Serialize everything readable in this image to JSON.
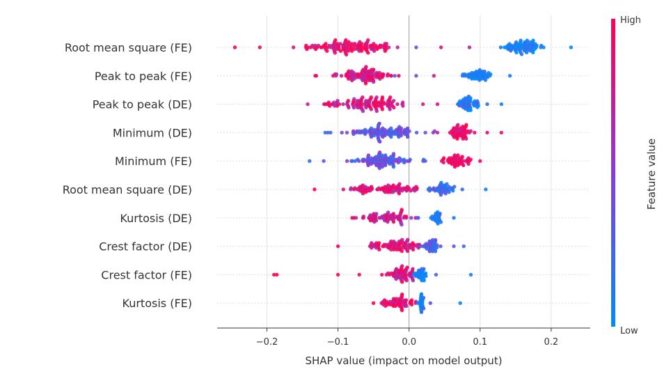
{
  "chart_data": {
    "type": "scatter",
    "subtype": "shap-beeswarm",
    "xlabel": "SHAP value (impact on model output)",
    "xlim": [
      -0.27,
      0.255
    ],
    "xticks": [
      -0.2,
      -0.1,
      0.0,
      0.1,
      0.2
    ],
    "xtick_labels": [
      "−0.2",
      "−0.1",
      "0.0",
      "0.1",
      "0.2"
    ],
    "colorbar": {
      "title": "Feature value",
      "high_label": "High",
      "low_label": "Low",
      "high_color": "#ff0052",
      "low_color": "#008bfb",
      "mid_color": "#8a3cd6"
    },
    "features": [
      {
        "name": "Root mean square (FE)",
        "clusters": [
          {
            "center": -0.08,
            "spread": 0.07,
            "count": 120,
            "value": 0.9,
            "width": 1.0
          },
          {
            "center": 0.16,
            "spread": 0.03,
            "count": 70,
            "value": 0.05,
            "width": 0.95
          }
        ],
        "extremes": [
          {
            "x": -0.245,
            "value": 1.0
          },
          {
            "x": -0.21,
            "value": 0.95
          },
          {
            "x": 0.228,
            "value": 0.0
          },
          {
            "x": 0.01,
            "value": 0.3
          },
          {
            "x": 0.045,
            "value": 0.85
          },
          {
            "x": 0.085,
            "value": 0.7
          }
        ]
      },
      {
        "name": "Peak to peak (FE)",
        "clusters": [
          {
            "center": -0.06,
            "spread": 0.045,
            "count": 95,
            "value": 0.85,
            "width": 0.85
          },
          {
            "center": 0.097,
            "spread": 0.02,
            "count": 50,
            "value": 0.05,
            "width": 0.8
          }
        ],
        "extremes": [
          {
            "x": -0.132,
            "value": 0.9
          },
          {
            "x": 0.01,
            "value": 0.4
          },
          {
            "x": 0.035,
            "value": 0.8
          },
          {
            "x": 0.142,
            "value": 0.1
          },
          {
            "x": -0.02,
            "value": 0.3
          }
        ]
      },
      {
        "name": "Peak to peak (DE)",
        "clusters": [
          {
            "center": -0.06,
            "spread": 0.055,
            "count": 110,
            "value": 0.85,
            "width": 0.95
          },
          {
            "center": 0.082,
            "spread": 0.018,
            "count": 50,
            "value": 0.1,
            "width": 0.85
          }
        ],
        "extremes": [
          {
            "x": -0.118,
            "value": 0.95
          },
          {
            "x": 0.13,
            "value": 0.1
          },
          {
            "x": 0.11,
            "value": 0.2
          },
          {
            "x": 0.04,
            "value": 0.8
          }
        ]
      },
      {
        "name": "Minimum (DE)",
        "clusters": [
          {
            "center": -0.04,
            "spread": 0.055,
            "count": 110,
            "value": 0.35,
            "width": 0.8
          },
          {
            "center": 0.072,
            "spread": 0.018,
            "count": 50,
            "value": 0.95,
            "width": 0.85
          }
        ],
        "extremes": [
          {
            "x": -0.118,
            "value": 0.1
          },
          {
            "x": 0.13,
            "value": 0.9
          },
          {
            "x": 0.11,
            "value": 0.85
          },
          {
            "x": 0.04,
            "value": 0.7
          }
        ]
      },
      {
        "name": "Minimum (FE)",
        "clusters": [
          {
            "center": -0.04,
            "spread": 0.05,
            "count": 100,
            "value": 0.35,
            "width": 0.8
          },
          {
            "center": 0.065,
            "spread": 0.02,
            "count": 50,
            "value": 0.95,
            "width": 0.8
          }
        ],
        "extremes": [
          {
            "x": -0.14,
            "value": 0.15
          },
          {
            "x": -0.12,
            "value": 0.3
          },
          {
            "x": 0.1,
            "value": 0.9
          },
          {
            "x": 0.0,
            "value": 0.5
          }
        ]
      },
      {
        "name": "Root mean square (DE)",
        "clusters": [
          {
            "center": -0.035,
            "spread": 0.06,
            "count": 90,
            "value": 0.85,
            "width": 0.75
          },
          {
            "center": 0.045,
            "spread": 0.02,
            "count": 45,
            "value": 0.2,
            "width": 0.75
          }
        ],
        "extremes": [
          {
            "x": -0.133,
            "value": 1.0
          },
          {
            "x": 0.108,
            "value": 0.05
          },
          {
            "x": 0.075,
            "value": 0.2
          }
        ]
      },
      {
        "name": "Kurtosis (DE)",
        "clusters": [
          {
            "center": -0.03,
            "spread": 0.04,
            "count": 75,
            "value": 0.75,
            "width": 0.75
          },
          {
            "center": 0.038,
            "spread": 0.008,
            "count": 25,
            "value": 0.05,
            "width": 0.8
          }
        ],
        "extremes": [
          {
            "x": -0.08,
            "value": 1.0
          },
          {
            "x": 0.063,
            "value": 0.1
          },
          {
            "x": 0.012,
            "value": 0.2
          }
        ]
      },
      {
        "name": "Crest factor (DE)",
        "clusters": [
          {
            "center": -0.02,
            "spread": 0.04,
            "count": 80,
            "value": 0.85,
            "width": 0.9
          },
          {
            "center": 0.03,
            "spread": 0.015,
            "count": 40,
            "value": 0.25,
            "width": 0.7
          }
        ],
        "extremes": [
          {
            "x": -0.1,
            "value": 1.0
          },
          {
            "x": 0.063,
            "value": 0.3
          },
          {
            "x": 0.077,
            "value": 0.2
          }
        ]
      },
      {
        "name": "Crest factor (FE)",
        "clusters": [
          {
            "center": -0.01,
            "spread": 0.03,
            "count": 70,
            "value": 0.8,
            "width": 0.8
          },
          {
            "center": 0.016,
            "spread": 0.008,
            "count": 30,
            "value": 0.05,
            "width": 0.8
          }
        ],
        "extremes": [
          {
            "x": -0.19,
            "value": 1.0
          },
          {
            "x": -0.186,
            "value": 1.0
          },
          {
            "x": -0.1,
            "value": 1.0
          },
          {
            "x": -0.07,
            "value": 0.95
          },
          {
            "x": 0.087,
            "value": 0.1
          },
          {
            "x": 0.038,
            "value": 0.3
          }
        ]
      },
      {
        "name": "Kurtosis (FE)",
        "clusters": [
          {
            "center": -0.015,
            "spread": 0.025,
            "count": 60,
            "value": 0.9,
            "width": 0.8
          },
          {
            "center": 0.018,
            "spread": 0.006,
            "count": 25,
            "value": 0.05,
            "width": 0.75
          }
        ],
        "extremes": [
          {
            "x": -0.05,
            "value": 1.0
          },
          {
            "x": 0.072,
            "value": 0.05
          },
          {
            "x": 0.03,
            "value": 0.3
          }
        ]
      }
    ]
  }
}
